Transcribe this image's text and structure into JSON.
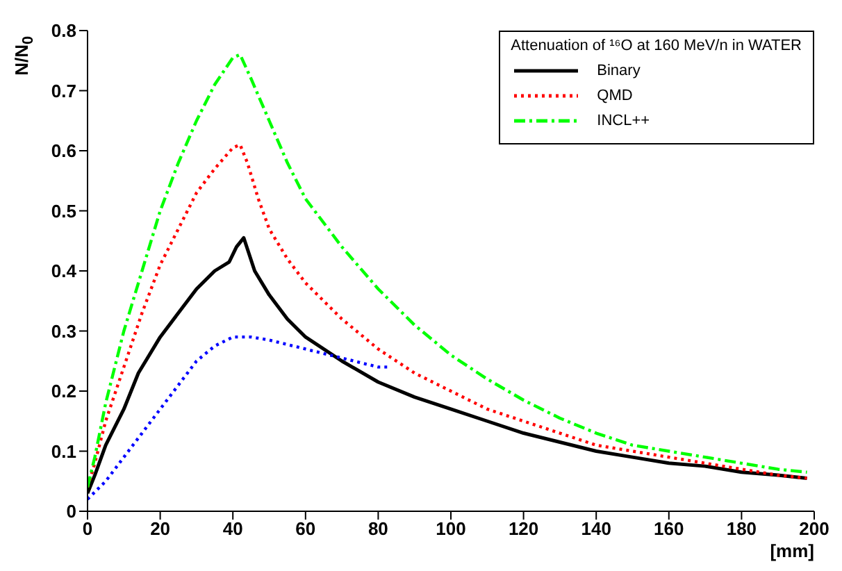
{
  "chart_data": {
    "type": "line",
    "xlabel": "[mm]",
    "ylabel": "N/N$_{0}$",
    "legend_title": "Attenuation of ¹⁶O at 160 MeV/n in WATER",
    "legend": "top right",
    "grid": false,
    "marker": "none",
    "xlim": [
      0,
      200
    ],
    "xticks": [
      0,
      20,
      40,
      60,
      80,
      100,
      120,
      140,
      160,
      180,
      200
    ],
    "ylim": [
      0,
      0.8
    ],
    "yticks": [
      0,
      0.1,
      0.2,
      0.3,
      0.4,
      0.5,
      0.6,
      0.7,
      0.8
    ],
    "series": [
      {
        "name": "Binary",
        "color": "#000000",
        "line_style": "solid",
        "x": [
          0,
          2,
          5,
          10,
          14,
          20,
          25,
          30,
          35,
          39,
          41,
          43,
          46,
          50,
          55,
          60,
          70,
          80,
          90,
          100,
          110,
          120,
          130,
          140,
          150,
          160,
          170,
          180,
          190,
          198
        ],
        "values": [
          0.03,
          0.06,
          0.11,
          0.17,
          0.23,
          0.29,
          0.33,
          0.37,
          0.4,
          0.415,
          0.44,
          0.455,
          0.4,
          0.36,
          0.32,
          0.29,
          0.25,
          0.215,
          0.19,
          0.17,
          0.15,
          0.13,
          0.115,
          0.1,
          0.09,
          0.08,
          0.075,
          0.065,
          0.06,
          0.055
        ]
      },
      {
        "name": "QMD",
        "color": "#ff0000",
        "line_style": "dotted",
        "x": [
          0,
          2,
          5,
          10,
          15,
          20,
          25,
          30,
          35,
          40,
          42,
          44,
          47,
          50,
          55,
          60,
          70,
          80,
          90,
          100,
          110,
          120,
          130,
          140,
          150,
          160,
          170,
          180,
          190,
          198
        ],
        "values": [
          0.04,
          0.08,
          0.15,
          0.24,
          0.33,
          0.41,
          0.47,
          0.53,
          0.57,
          0.605,
          0.61,
          0.58,
          0.52,
          0.47,
          0.42,
          0.38,
          0.32,
          0.27,
          0.23,
          0.2,
          0.17,
          0.15,
          0.13,
          0.11,
          0.1,
          0.09,
          0.08,
          0.07,
          0.06,
          0.055
        ]
      },
      {
        "name": "INCL++",
        "color": "#00ff00",
        "line_style": "dashed",
        "x": [
          0,
          2,
          5,
          10,
          15,
          20,
          25,
          30,
          35,
          40,
          42,
          45,
          50,
          55,
          60,
          70,
          80,
          90,
          100,
          110,
          120,
          130,
          140,
          150,
          160,
          170,
          180,
          190,
          198
        ],
        "values": [
          0.04,
          0.09,
          0.18,
          0.3,
          0.4,
          0.5,
          0.58,
          0.65,
          0.71,
          0.755,
          0.76,
          0.72,
          0.65,
          0.58,
          0.52,
          0.44,
          0.37,
          0.31,
          0.26,
          0.22,
          0.185,
          0.155,
          0.13,
          0.11,
          0.1,
          0.09,
          0.08,
          0.07,
          0.065
        ]
      },
      {
        "color": "#0000ff",
        "line_style": "dotted",
        "x": [
          0,
          5,
          10,
          15,
          20,
          25,
          30,
          35,
          40,
          45,
          50,
          60,
          70,
          80,
          83
        ],
        "values": [
          0.02,
          0.05,
          0.09,
          0.13,
          0.17,
          0.21,
          0.25,
          0.275,
          0.29,
          0.29,
          0.285,
          0.27,
          0.255,
          0.24,
          0.24
        ]
      }
    ]
  }
}
